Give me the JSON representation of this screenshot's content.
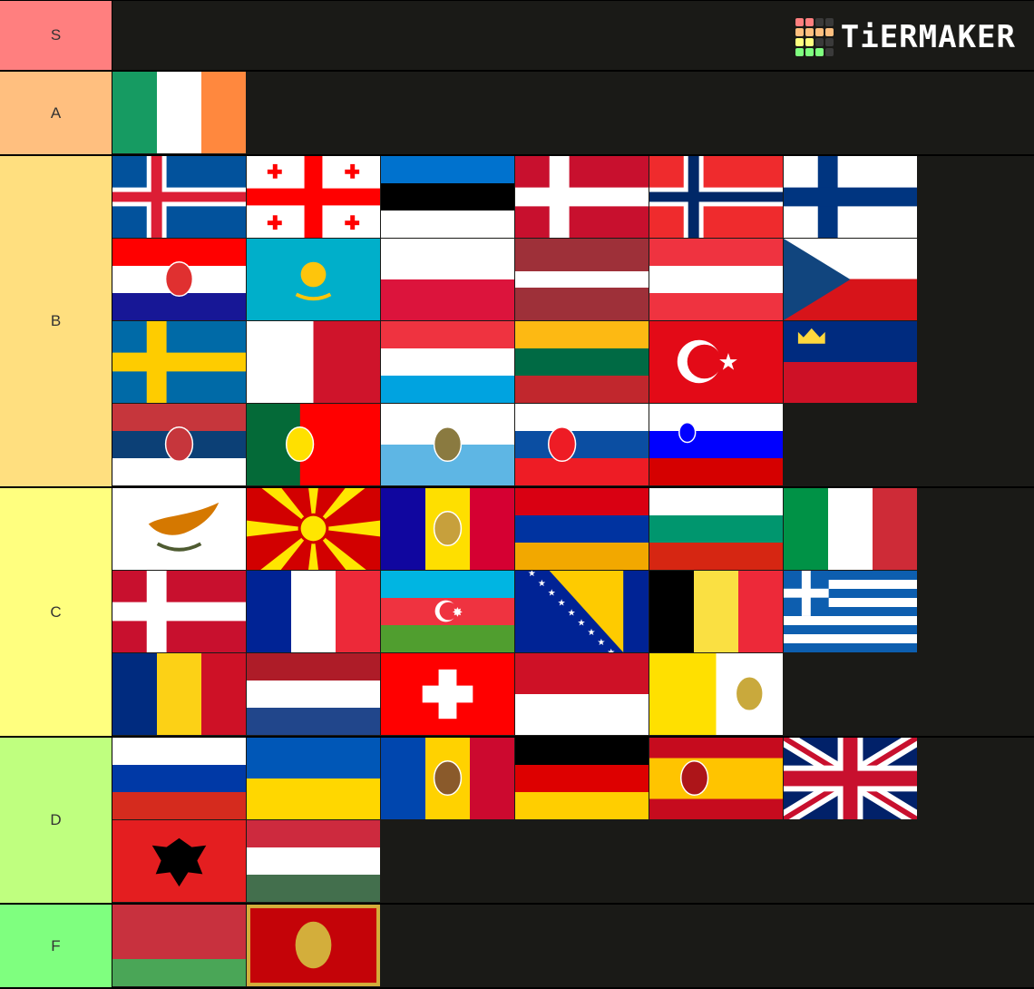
{
  "logo": {
    "text": "TiERMAKER",
    "grid": [
      "#ff7f7f",
      "#ff7f7f",
      "#3a3a3a",
      "#3a3a3a",
      "#ffbf7f",
      "#ffbf7f",
      "#ffbf7f",
      "#ffbf7f",
      "#ffff7f",
      "#ffff7f",
      "#3a3a3a",
      "#3a3a3a",
      "#7fff7f",
      "#7fff7f",
      "#7fff7f",
      "#3a3a3a"
    ]
  },
  "tiers": [
    {
      "label": "S",
      "color": "#ff7f7f",
      "flags": []
    },
    {
      "label": "A",
      "color": "#ffbf7f",
      "flags": [
        {
          "name": "ireland",
          "dir": "v",
          "s": [
            "#169b62",
            "#ffffff",
            "#ff883e"
          ]
        }
      ]
    },
    {
      "label": "B",
      "color": "#ffdf7f",
      "flags": [
        {
          "name": "iceland",
          "type": "nordic",
          "s": [
            "#02529c",
            "#ffffff",
            "#dc1e35"
          ]
        },
        {
          "name": "georgia",
          "type": "georgia"
        },
        {
          "name": "estonia",
          "dir": "h",
          "s": [
            "#0072ce",
            "#000000",
            "#ffffff"
          ]
        },
        {
          "name": "denmark",
          "type": "nordic",
          "s": [
            "#c8102e",
            "#ffffff"
          ]
        },
        {
          "name": "norway",
          "type": "nordic",
          "s": [
            "#ef2b2d",
            "#ffffff",
            "#002868"
          ]
        },
        {
          "name": "finland",
          "type": "nordic",
          "s": [
            "#ffffff",
            "#003580"
          ]
        },
        {
          "name": "croatia",
          "dir": "h",
          "s": [
            "#ff0000",
            "#ffffff",
            "#171796"
          ],
          "emblem": "#e03030"
        },
        {
          "name": "kazakhstan",
          "dir": "h",
          "s": [
            "#00afca"
          ],
          "sun": "#fec50c"
        },
        {
          "name": "poland",
          "dir": "h",
          "s": [
            "#ffffff",
            "#dc143c"
          ]
        },
        {
          "name": "latvia",
          "dir": "h",
          "s": [
            "#9e3039",
            "#ffffff",
            "#9e3039"
          ],
          "w": [
            2,
            1,
            2
          ]
        },
        {
          "name": "austria",
          "dir": "h",
          "s": [
            "#ef3340",
            "#ffffff",
            "#ef3340"
          ]
        },
        {
          "name": "czechia",
          "type": "czech"
        },
        {
          "name": "sweden",
          "type": "nordic",
          "s": [
            "#006aa7",
            "#fecc00"
          ]
        },
        {
          "name": "malta",
          "dir": "v",
          "s": [
            "#ffffff",
            "#cf142b"
          ]
        },
        {
          "name": "luxembourg",
          "dir": "h",
          "s": [
            "#ef3340",
            "#ffffff",
            "#00a3e0"
          ]
        },
        {
          "name": "lithuania",
          "dir": "h",
          "s": [
            "#fdb913",
            "#006a44",
            "#c1272d"
          ]
        },
        {
          "name": "turkey",
          "type": "turkey"
        },
        {
          "name": "liechtenstein",
          "dir": "h",
          "s": [
            "#002b7f",
            "#ce1126"
          ],
          "crown": "#ffd83d"
        },
        {
          "name": "serbia",
          "dir": "h",
          "s": [
            "#c6363c",
            "#0c4076",
            "#ffffff"
          ],
          "emblem": "#c6363c"
        },
        {
          "name": "portugal",
          "dir": "v",
          "s": [
            "#046a38",
            "#ff0000"
          ],
          "w": [
            2,
            3
          ],
          "emblem": "#ffe000"
        },
        {
          "name": "san-marino",
          "dir": "h",
          "s": [
            "#ffffff",
            "#5eb6e4"
          ],
          "emblem": "#8a7a40"
        },
        {
          "name": "slovakia",
          "dir": "h",
          "s": [
            "#ffffff",
            "#0b4ea2",
            "#ee1c25"
          ],
          "emblem": "#ee1c25"
        },
        {
          "name": "slovenia",
          "dir": "h",
          "s": [
            "#ffffff",
            "#0000ff",
            "#d50000"
          ],
          "emblem": "#0000ff"
        }
      ]
    },
    {
      "label": "C",
      "color": "#ffff7f",
      "flags": [
        {
          "name": "cyprus",
          "type": "cyprus"
        },
        {
          "name": "north-macedonia",
          "type": "macedonia"
        },
        {
          "name": "andorra",
          "dir": "v",
          "s": [
            "#10069f",
            "#fedf00",
            "#d50032"
          ],
          "emblem": "#c7a03c"
        },
        {
          "name": "armenia",
          "dir": "h",
          "s": [
            "#d90012",
            "#0033a0",
            "#f2a800"
          ]
        },
        {
          "name": "bulgaria",
          "dir": "h",
          "s": [
            "#ffffff",
            "#00966e",
            "#d62612"
          ]
        },
        {
          "name": "italy",
          "dir": "v",
          "s": [
            "#009246",
            "#ffffff",
            "#ce2b37"
          ]
        },
        {
          "name": "denmark",
          "type": "nordic",
          "s": [
            "#c8102e",
            "#ffffff"
          ]
        },
        {
          "name": "france",
          "dir": "v",
          "s": [
            "#002395",
            "#ffffff",
            "#ed2939"
          ]
        },
        {
          "name": "azerbaijan",
          "dir": "h",
          "s": [
            "#00b5e2",
            "#ef3340",
            "#509e2f"
          ],
          "crescent": "#ef3340"
        },
        {
          "name": "bosnia-and-herzegovina",
          "type": "bosnia"
        },
        {
          "name": "belgium",
          "dir": "v",
          "s": [
            "#000000",
            "#fae042",
            "#ed2939"
          ]
        },
        {
          "name": "greece",
          "type": "greece"
        },
        {
          "name": "romania",
          "dir": "v",
          "s": [
            "#002b7f",
            "#fcd116",
            "#ce1126"
          ]
        },
        {
          "name": "netherlands",
          "dir": "h",
          "s": [
            "#ae1c28",
            "#ffffff",
            "#21468b"
          ]
        },
        {
          "name": "switzerland",
          "type": "swiss"
        },
        {
          "name": "monaco",
          "dir": "h",
          "s": [
            "#ce1126",
            "#ffffff"
          ]
        },
        {
          "name": "vatican-city",
          "dir": "v",
          "s": [
            "#ffe000",
            "#ffffff"
          ],
          "emblem": "#c9a93c"
        }
      ]
    },
    {
      "label": "D",
      "color": "#bfff7f",
      "flags": [
        {
          "name": "russia",
          "dir": "h",
          "s": [
            "#ffffff",
            "#0039a6",
            "#d52b1e"
          ]
        },
        {
          "name": "ukraine",
          "dir": "h",
          "s": [
            "#0057b7",
            "#ffd700"
          ]
        },
        {
          "name": "moldova",
          "dir": "v",
          "s": [
            "#0046ae",
            "#ffd200",
            "#cc092f"
          ],
          "emblem": "#8a5a2b"
        },
        {
          "name": "germany",
          "dir": "h",
          "s": [
            "#000000",
            "#dd0000",
            "#ffce00"
          ]
        },
        {
          "name": "spain",
          "dir": "h",
          "s": [
            "#c60b1e",
            "#ffc400",
            "#c60b1e"
          ],
          "w": [
            1,
            2,
            1
          ],
          "emblem": "#ad1519"
        },
        {
          "name": "united-kingdom",
          "type": "uk"
        },
        {
          "name": "albania",
          "dir": "h",
          "s": [
            "#e41e20"
          ],
          "eagle": "#000000"
        },
        {
          "name": "hungary",
          "dir": "h",
          "s": [
            "#cd2a3e",
            "#ffffff",
            "#436f4d"
          ]
        }
      ]
    },
    {
      "label": "F",
      "color": "#7fff7f",
      "flags": [
        {
          "name": "belarus",
          "dir": "h",
          "s": [
            "#c8313e",
            "#4aa657"
          ],
          "w": [
            2,
            1
          ]
        },
        {
          "name": "montenegro",
          "type": "montenegro"
        }
      ]
    }
  ]
}
